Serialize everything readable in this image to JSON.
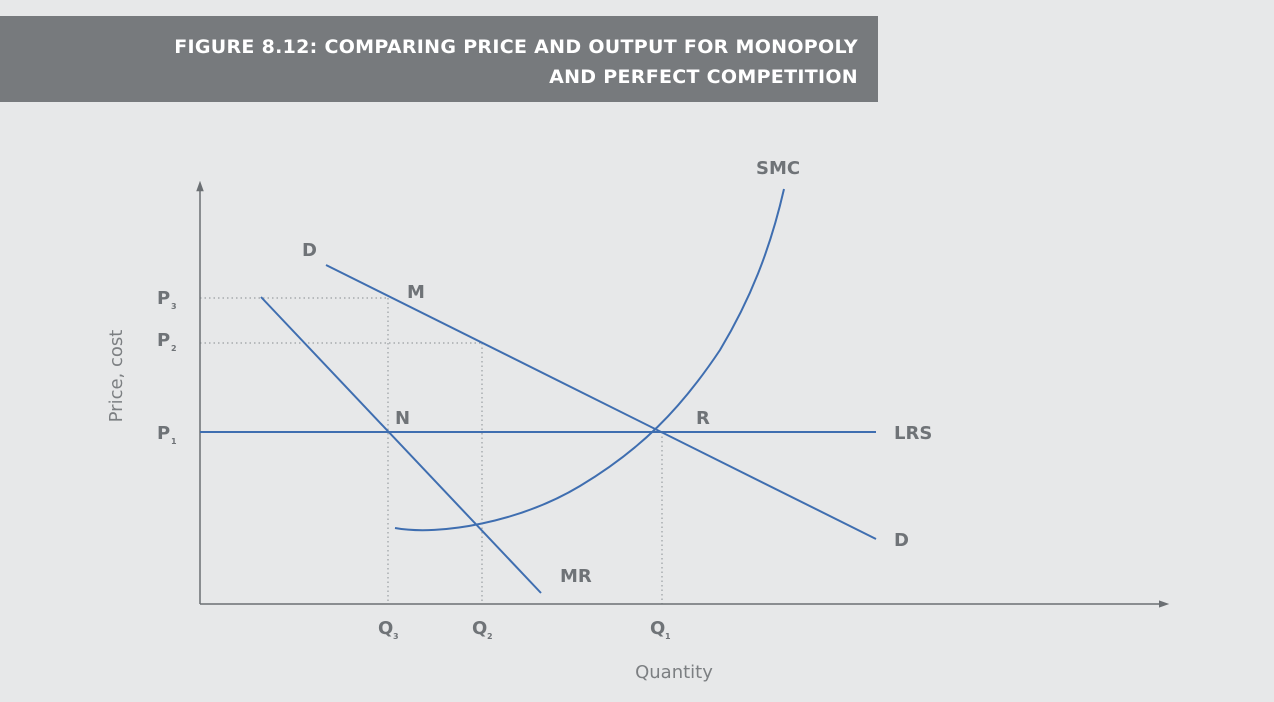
{
  "figure": {
    "title_line1": "FIGURE 8.12: COMPARING PRICE AND OUTPUT FOR MONOPOLY",
    "title_line2": "AND PERFECT COMPETITION"
  },
  "chart_data": {
    "type": "line",
    "xlabel": "Quantity",
    "ylabel": "Price, cost",
    "curve_color": "#3f6eb0",
    "axis_color": "#6b6f73",
    "guide_color": "#9a9ea2",
    "curve_labels": {
      "smc": "SMC",
      "demand": "D",
      "mr": "MR",
      "lrs": "LRS"
    },
    "point_labels": {
      "m": "M",
      "n": "N",
      "r": "R"
    },
    "price_ticks": [
      {
        "letter": "P",
        "sub": "3"
      },
      {
        "letter": "P",
        "sub": "2"
      },
      {
        "letter": "P",
        "sub": "1"
      }
    ],
    "quantity_ticks": [
      {
        "letter": "Q",
        "sub": "3"
      },
      {
        "letter": "Q",
        "sub": "2"
      },
      {
        "letter": "Q",
        "sub": "1"
      }
    ]
  }
}
